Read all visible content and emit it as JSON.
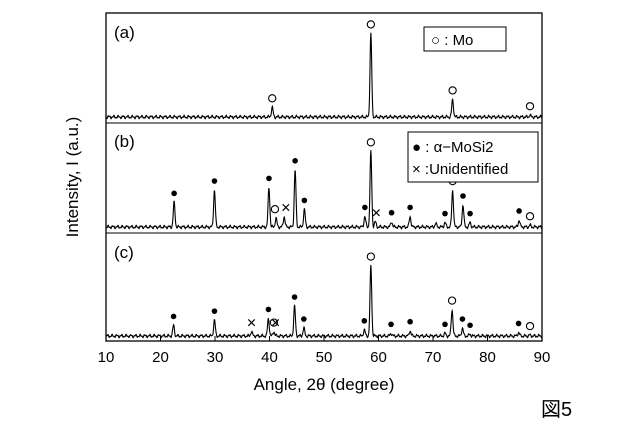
{
  "figure_label": "図5",
  "chart_data": {
    "type": "line",
    "xlabel": "Angle, 2θ (degree)",
    "ylabel": "Intensity, I (a.u.)",
    "xlim": [
      10,
      90
    ],
    "xticks": [
      10,
      20,
      30,
      40,
      50,
      60,
      70,
      80,
      90
    ],
    "grid": false,
    "legends": [
      {
        "panel": "a",
        "marker": "circle-open",
        "text": "○ : Mo"
      },
      {
        "panel": "b",
        "marker": "circle-filled",
        "text": "● : α−MoSi2"
      },
      {
        "panel": "b",
        "marker": "cross",
        "text": "× :Unidentified"
      }
    ],
    "panels": [
      {
        "label": "(a)",
        "peaks": [
          {
            "x": 40.5,
            "h": 0.11
          },
          {
            "x": 58.6,
            "h": 0.95
          },
          {
            "x": 73.6,
            "h": 0.2
          },
          {
            "x": 87.8,
            "h": 0.02
          }
        ],
        "markers": [
          {
            "x": 40.5,
            "type": "circle-open"
          },
          {
            "x": 58.6,
            "type": "circle-open"
          },
          {
            "x": 73.6,
            "type": "circle-open"
          },
          {
            "x": 87.8,
            "type": "circle-open"
          }
        ]
      },
      {
        "label": "(b)",
        "peaks": [
          {
            "x": 22.5,
            "h": 0.28
          },
          {
            "x": 29.9,
            "h": 0.42
          },
          {
            "x": 39.9,
            "h": 0.45
          },
          {
            "x": 41.2,
            "h": 0.1
          },
          {
            "x": 42.7,
            "h": 0.12
          },
          {
            "x": 44.7,
            "h": 0.65
          },
          {
            "x": 46.4,
            "h": 0.2
          },
          {
            "x": 57.5,
            "h": 0.12
          },
          {
            "x": 58.6,
            "h": 0.86
          },
          {
            "x": 59.4,
            "h": 0.06
          },
          {
            "x": 62.4,
            "h": 0.06
          },
          {
            "x": 65.8,
            "h": 0.12
          },
          {
            "x": 70.5,
            "h": 0.04
          },
          {
            "x": 72.2,
            "h": 0.05
          },
          {
            "x": 73.6,
            "h": 0.42
          },
          {
            "x": 75.5,
            "h": 0.25
          },
          {
            "x": 76.8,
            "h": 0.05
          },
          {
            "x": 85.8,
            "h": 0.08
          },
          {
            "x": 87.8,
            "h": 0.02
          }
        ],
        "markers": [
          {
            "x": 22.5,
            "type": "circle-filled"
          },
          {
            "x": 29.9,
            "type": "circle-filled"
          },
          {
            "x": 39.9,
            "type": "circle-filled"
          },
          {
            "x": 41.0,
            "type": "circle-open"
          },
          {
            "x": 43.0,
            "type": "cross"
          },
          {
            "x": 44.7,
            "type": "circle-filled"
          },
          {
            "x": 46.4,
            "type": "circle-filled"
          },
          {
            "x": 57.5,
            "type": "circle-filled"
          },
          {
            "x": 58.6,
            "type": "circle-open"
          },
          {
            "x": 59.6,
            "type": "cross"
          },
          {
            "x": 62.4,
            "type": "circle-filled"
          },
          {
            "x": 65.8,
            "type": "circle-filled"
          },
          {
            "x": 72.2,
            "type": "circle-filled"
          },
          {
            "x": 73.6,
            "type": "circle-open"
          },
          {
            "x": 75.5,
            "type": "circle-filled"
          },
          {
            "x": 76.8,
            "type": "circle-filled"
          },
          {
            "x": 85.8,
            "type": "circle-filled"
          },
          {
            "x": 87.8,
            "type": "circle-open"
          }
        ]
      },
      {
        "label": "(c)",
        "peaks": [
          {
            "x": 22.4,
            "h": 0.12
          },
          {
            "x": 29.9,
            "h": 0.18
          },
          {
            "x": 36.7,
            "h": 0.05
          },
          {
            "x": 39.8,
            "h": 0.2
          },
          {
            "x": 40.8,
            "h": 0.05
          },
          {
            "x": 44.6,
            "h": 0.34
          },
          {
            "x": 46.3,
            "h": 0.09
          },
          {
            "x": 57.4,
            "h": 0.07
          },
          {
            "x": 58.6,
            "h": 0.8
          },
          {
            "x": 62.3,
            "h": 0.03
          },
          {
            "x": 65.8,
            "h": 0.06
          },
          {
            "x": 72.2,
            "h": 0.03
          },
          {
            "x": 73.5,
            "h": 0.3
          },
          {
            "x": 75.4,
            "h": 0.09
          },
          {
            "x": 76.8,
            "h": 0.02
          },
          {
            "x": 85.7,
            "h": 0.04
          },
          {
            "x": 87.8,
            "h": 0.01
          }
        ],
        "markers": [
          {
            "x": 22.4,
            "type": "circle-filled"
          },
          {
            "x": 29.9,
            "type": "circle-filled"
          },
          {
            "x": 36.7,
            "type": "cross"
          },
          {
            "x": 39.8,
            "type": "circle-filled"
          },
          {
            "x": 40.8,
            "type": "circle-open"
          },
          {
            "x": 41.1,
            "type": "cross"
          },
          {
            "x": 44.6,
            "type": "circle-filled"
          },
          {
            "x": 46.3,
            "type": "circle-filled"
          },
          {
            "x": 57.4,
            "type": "circle-filled"
          },
          {
            "x": 58.6,
            "type": "circle-open"
          },
          {
            "x": 62.3,
            "type": "circle-filled"
          },
          {
            "x": 65.8,
            "type": "circle-filled"
          },
          {
            "x": 72.2,
            "type": "circle-filled"
          },
          {
            "x": 73.5,
            "type": "circle-open"
          },
          {
            "x": 75.4,
            "type": "circle-filled"
          },
          {
            "x": 76.8,
            "type": "circle-filled"
          },
          {
            "x": 85.7,
            "type": "circle-filled"
          },
          {
            "x": 87.8,
            "type": "circle-open"
          }
        ]
      }
    ]
  }
}
